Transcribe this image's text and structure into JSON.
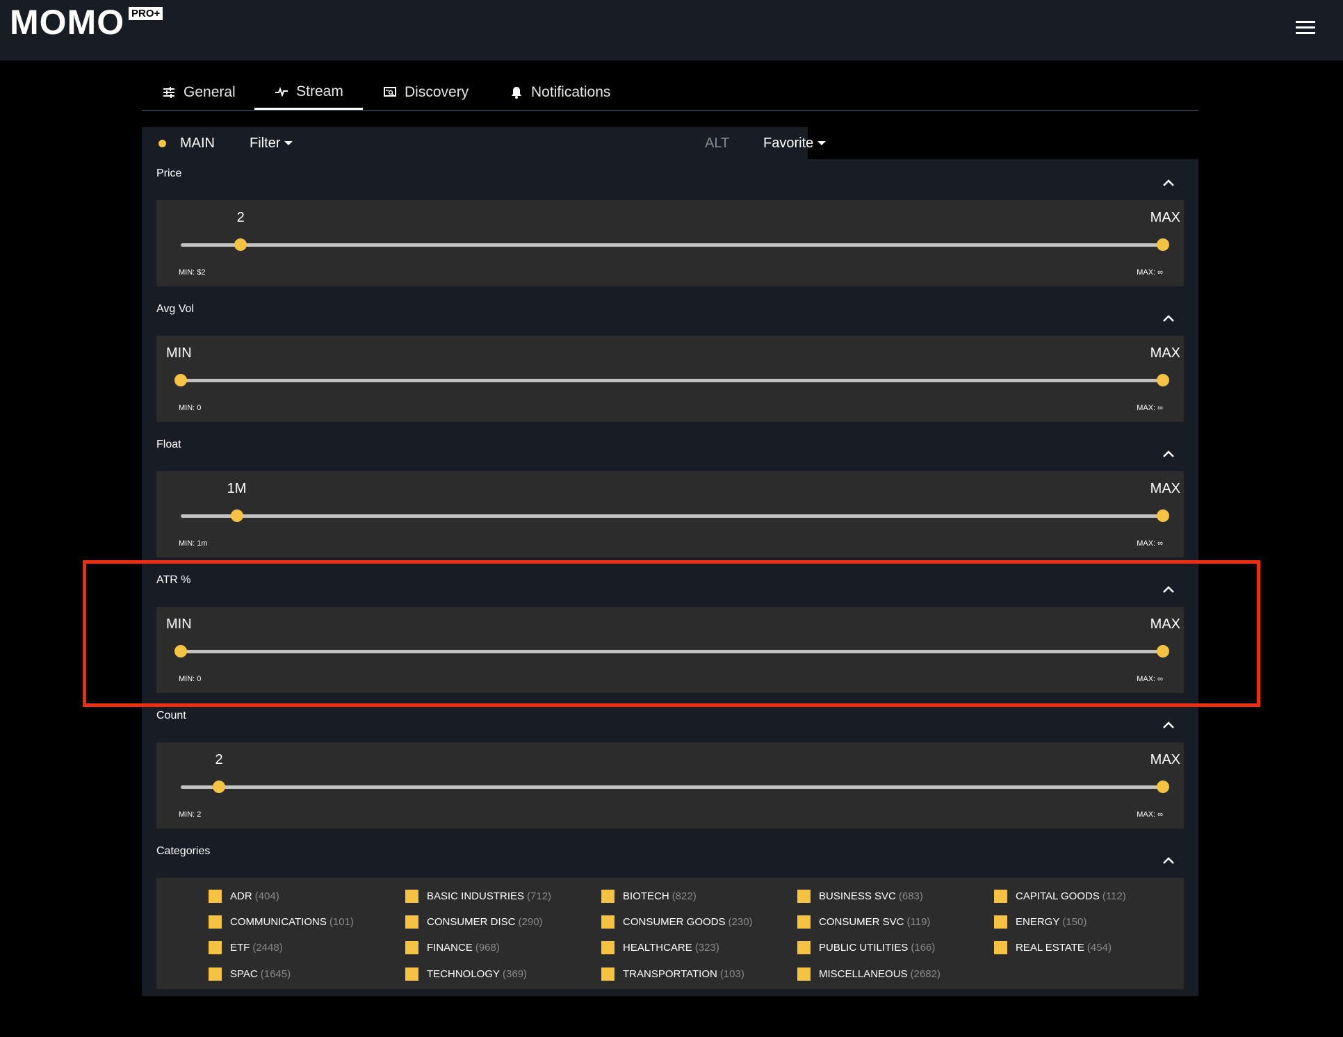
{
  "app": {
    "logo": "MOMO",
    "badge": "PRO+"
  },
  "tabs": [
    {
      "label": "General",
      "icon": "sliders-icon"
    },
    {
      "label": "Stream",
      "icon": "pulse-icon"
    },
    {
      "label": "Discovery",
      "icon": "screen-search-icon"
    },
    {
      "label": "Notifications",
      "icon": "bell-icon"
    }
  ],
  "active_tab": "Stream",
  "subtabs": {
    "main": "MAIN",
    "filter": "Filter",
    "alt": "ALT",
    "favorite": "Favorite"
  },
  "filters": [
    {
      "title": "Price",
      "left_value": "2",
      "right_value": "MAX",
      "min_label": "MIN: $2",
      "max_label": "MAX: ∞",
      "left_pos": 0.061,
      "right_pos": 1.0
    },
    {
      "title": "Avg Vol",
      "left_value": "MIN",
      "right_value": "MAX",
      "min_label": "MIN: 0",
      "max_label": "MAX: ∞",
      "left_pos": 0.0,
      "right_pos": 1.0
    },
    {
      "title": "Float",
      "left_value": "1M",
      "right_value": "MAX",
      "min_label": "MIN: 1m",
      "max_label": "MAX: ∞",
      "left_pos": 0.057,
      "right_pos": 1.0
    },
    {
      "title": "ATR %",
      "left_value": "MIN",
      "right_value": "MAX",
      "min_label": "MIN: 0",
      "max_label": "MAX: ∞",
      "left_pos": 0.0,
      "right_pos": 1.0
    },
    {
      "title": "Count",
      "left_value": "2",
      "right_value": "MAX",
      "min_label": "MIN: 2",
      "max_label": "MAX: ∞",
      "left_pos": 0.039,
      "right_pos": 1.0
    }
  ],
  "categories_title": "Categories",
  "categories": [
    {
      "name": "ADR",
      "count": "(404)"
    },
    {
      "name": "BASIC INDUSTRIES",
      "count": "(712)"
    },
    {
      "name": "BIOTECH",
      "count": "(822)"
    },
    {
      "name": "BUSINESS SVC",
      "count": "(683)"
    },
    {
      "name": "CAPITAL GOODS",
      "count": "(112)"
    },
    {
      "name": "COMMUNICATIONS",
      "count": "(101)"
    },
    {
      "name": "CONSUMER DISC",
      "count": "(290)"
    },
    {
      "name": "CONSUMER GOODS",
      "count": "(230)"
    },
    {
      "name": "CONSUMER SVC",
      "count": "(119)"
    },
    {
      "name": "ENERGY",
      "count": "(150)"
    },
    {
      "name": "ETF",
      "count": "(2448)"
    },
    {
      "name": "FINANCE",
      "count": "(968)"
    },
    {
      "name": "HEALTHCARE",
      "count": "(323)"
    },
    {
      "name": "PUBLIC UTILITIES",
      "count": "(166)"
    },
    {
      "name": "REAL ESTATE",
      "count": "(454)"
    },
    {
      "name": "SPAC",
      "count": "(1645)"
    },
    {
      "name": "TECHNOLOGY",
      "count": "(369)"
    },
    {
      "name": "TRANSPORTATION",
      "count": "(103)"
    },
    {
      "name": "MISCELLANEOUS",
      "count": "(2682)"
    }
  ],
  "colors": {
    "accent": "#f5c242",
    "panel": "#181c24",
    "box": "#2c2c2c",
    "highlight": "#f02d10"
  }
}
